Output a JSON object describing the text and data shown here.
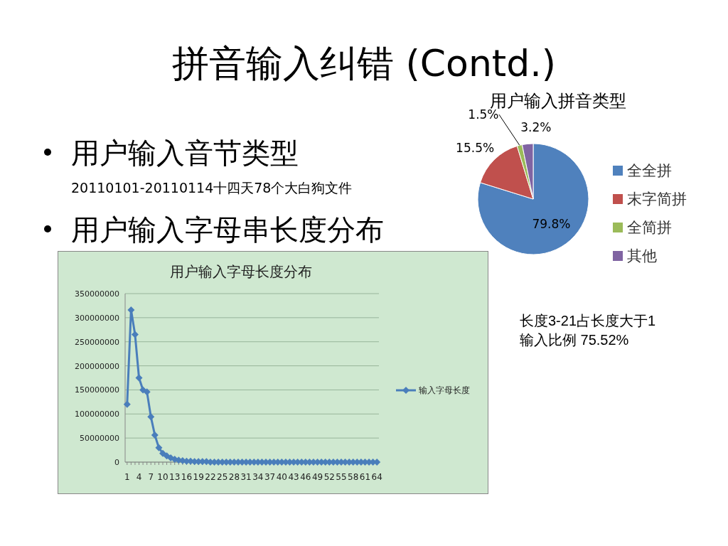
{
  "chart_data": [
    {
      "type": "other",
      "title": "拼音输入纠错 (Contd.)",
      "annotations": [
        "用户输入音节类型",
        "20110101-20110114十四天78个大白狗文件",
        "用户输入字母串长度分布"
      ]
    },
    {
      "type": "pie",
      "title": "用户输入拼音类型",
      "categories": [
        "全全拼",
        "末字简拼",
        "全简拼",
        "其他"
      ],
      "values": [
        79.8,
        15.5,
        1.5,
        3.2
      ],
      "colors": [
        "#4f81bd",
        "#c0504d",
        "#9bbb59",
        "#8064a2"
      ],
      "value_labels": [
        "79.8%",
        "15.5%",
        "1.5%",
        "3.2%"
      ],
      "legend": "right"
    },
    {
      "type": "line",
      "title": "用户输入字母长度分布",
      "categories": [
        "1",
        null,
        null,
        "4",
        null,
        null,
        "7",
        null,
        null,
        "10",
        null,
        null,
        "13",
        null,
        null,
        "16",
        null,
        null,
        "19",
        null,
        null,
        "22",
        null,
        null,
        "25",
        null,
        null,
        "28",
        null,
        null,
        "31",
        null,
        null,
        "34",
        null,
        null,
        "37",
        null,
        null,
        "40",
        null,
        null,
        "43",
        null,
        null,
        "46",
        null,
        null,
        "49",
        null,
        null,
        "52",
        null,
        null,
        "55",
        null,
        null,
        "58",
        null,
        null,
        "61",
        null,
        null,
        "64"
      ],
      "series": [
        {
          "name": "输入字母长度",
          "color": "#4a7ebb",
          "values": [
            120000000,
            316000000,
            265000000,
            175000000,
            150000000,
            146000000,
            94000000,
            56000000,
            30000000,
            18000000,
            13000000,
            9000000,
            6000000,
            4000000,
            3000000,
            2000000,
            2000000,
            1000000,
            1000000,
            1000000,
            1000000,
            0,
            0,
            0,
            0,
            0,
            0,
            0,
            0,
            0,
            0,
            0,
            0,
            0,
            0,
            0,
            0,
            0,
            0,
            0,
            0,
            0,
            0,
            0,
            0,
            0,
            0,
            0,
            0,
            0,
            0,
            0,
            0,
            0,
            0,
            0,
            0,
            0,
            0,
            0,
            0,
            0,
            0,
            0
          ]
        }
      ],
      "ylim": [
        0,
        350000000
      ],
      "yticks": [
        0,
        50000000,
        100000000,
        150000000,
        200000000,
        250000000,
        300000000,
        350000000
      ],
      "grid": "y",
      "marker": "diamond",
      "line_style": "solid",
      "legend": "right",
      "annotations": [
        "长度3-21占长度大于1输入比例 75.52%"
      ]
    }
  ]
}
